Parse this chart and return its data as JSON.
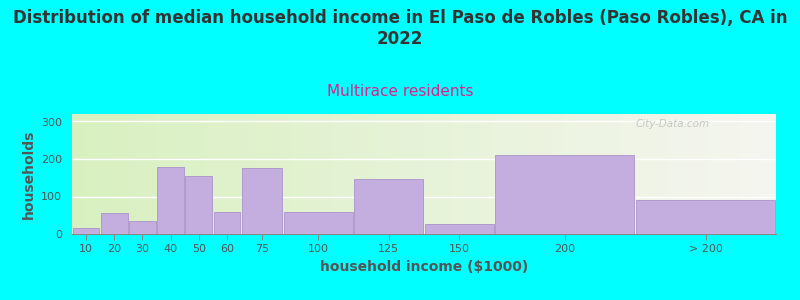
{
  "title": "Distribution of median household income in El Paso de Robles (Paso Robles), CA in\n2022",
  "subtitle": "Multirace residents",
  "xlabel": "household income ($1000)",
  "ylabel": "households",
  "background_color": "#00FFFF",
  "bar_color": "#c4aee0",
  "bar_edge_color": "#b09ccc",
  "categories": [
    "10",
    "20",
    "30",
    "40",
    "50",
    "60",
    "75",
    "100",
    "125",
    "150",
    "200",
    "> 200"
  ],
  "values": [
    15,
    55,
    35,
    180,
    155,
    60,
    175,
    60,
    148,
    27,
    210,
    90
  ],
  "ylim": [
    0,
    320
  ],
  "yticks": [
    0,
    100,
    200,
    300
  ],
  "title_fontsize": 12,
  "title_color": "#333333",
  "subtitle_fontsize": 11,
  "subtitle_color": "#dd2288",
  "axis_label_fontsize": 10,
  "axis_label_color": "#555555",
  "tick_fontsize": 8,
  "tick_color": "#555555",
  "watermark": "City-Data.com",
  "edges": [
    0,
    10,
    20,
    30,
    40,
    50,
    60,
    75,
    100,
    125,
    150,
    200,
    250
  ]
}
